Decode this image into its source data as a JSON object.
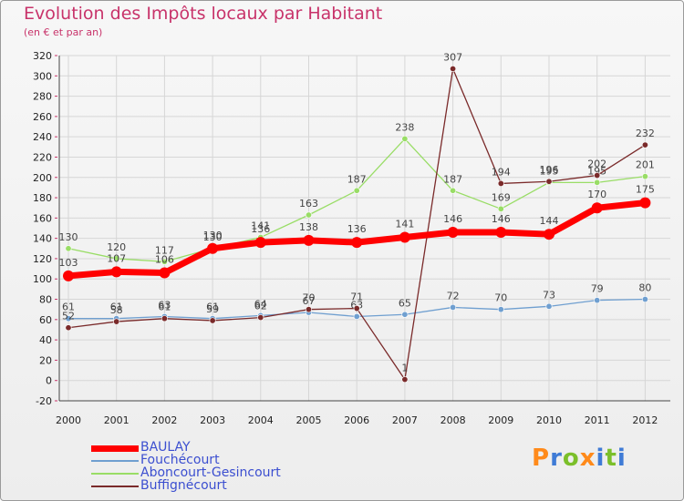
{
  "chart_data": {
    "type": "line",
    "title": "Evolution des Impôts locaux par Habitant",
    "subtitle": "(en € et par an)",
    "x": [
      "2000",
      "2001",
      "2002",
      "2003",
      "2004",
      "2005",
      "2006",
      "2007",
      "2008",
      "2009",
      "2010",
      "2011",
      "2012"
    ],
    "ylim": [
      -20,
      320
    ],
    "yticks": [
      -20,
      0,
      20,
      40,
      60,
      80,
      100,
      120,
      140,
      160,
      180,
      200,
      220,
      240,
      260,
      280,
      300,
      320
    ],
    "grid": true,
    "legend_position": "bottom-left",
    "series": [
      {
        "name": "BAULAY",
        "color": "#ff0000",
        "width": 7,
        "values": [
          103,
          107,
          106,
          130,
          136,
          138,
          136,
          141,
          146,
          146,
          144,
          170,
          175
        ]
      },
      {
        "name": "Fouchécourt",
        "color": "#6f9fd0",
        "width": 1.3,
        "values": [
          61,
          61,
          63,
          61,
          64,
          67,
          63,
          65,
          72,
          70,
          73,
          79,
          80
        ]
      },
      {
        "name": "Aboncourt-Gesincourt",
        "color": "#99dd66",
        "width": 1.3,
        "values": [
          130,
          120,
          117,
          130,
          141,
          163,
          187,
          238,
          187,
          169,
          195,
          195,
          201
        ]
      },
      {
        "name": "Buffignécourt",
        "color": "#7a2a2a",
        "width": 1.3,
        "values": [
          52,
          58,
          61,
          59,
          62,
          70,
          71,
          1,
          307,
          194,
          196,
          202,
          232
        ]
      }
    ]
  },
  "logo": {
    "letters": [
      "P",
      "r",
      "o",
      "x",
      "i",
      "t",
      "i"
    ]
  },
  "colors": {
    "title": "#c8336a",
    "grid": "#d6d6d6",
    "logo": [
      "#ff8a1a",
      "#3f7bd6",
      "#7bbf2a",
      "#ff8a1a",
      "#3f7bd6",
      "#7bbf2a",
      "#3f7bd6"
    ]
  }
}
